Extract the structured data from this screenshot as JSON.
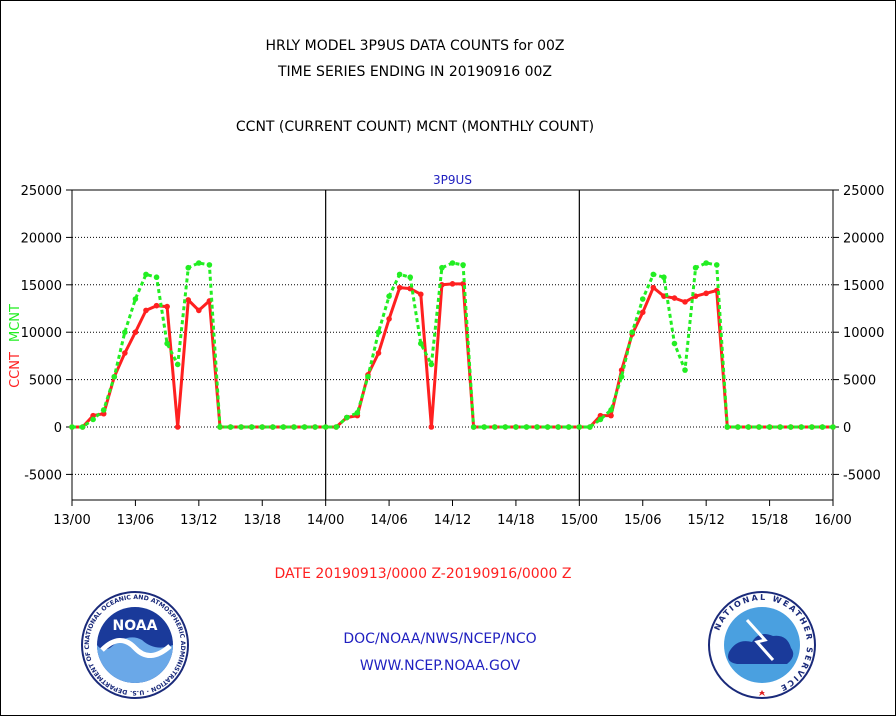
{
  "title_lines": [
    "HRLY MODEL 3P9US DATA COUNTS for 00Z",
    "TIME SERIES ENDING IN 20190916 00Z",
    "CCNT (CURRENT COUNT) MCNT (MONTHLY COUNT)"
  ],
  "date_range_label": "DATE 20190913/0000 Z-20190916/0000 Z",
  "footer_lines": [
    "DOC/NOAA/NWS/NCEP/NCO",
    "WWW.NCEP.NOAA.GOV"
  ],
  "logos": {
    "left": {
      "center_text": "NOAA",
      "ring_text": "NATIONAL OCEANIC AND ATMOSPHERIC ADMINISTRATION · U.S. DEPARTMENT OF COMMERCE"
    },
    "right": {
      "ring_text": "NATIONAL WEATHER SERVICE"
    }
  },
  "colors": {
    "ccnt": "#ff2020",
    "mcnt": "#22ee22",
    "footer": "#2020c0",
    "chart_title": "#2020c0"
  },
  "chart_data": {
    "type": "line",
    "title": "3P9US",
    "ylabel_left": [
      "CCNT",
      "MCNT"
    ],
    "ylim": [
      -7700,
      25000
    ],
    "xlim": [
      0,
      72
    ],
    "yticks_left": [
      "25000",
      "20000",
      "15000",
      "10000",
      "5000",
      "0",
      "-5000"
    ],
    "yticks_right": [
      "25000",
      "20000",
      "15000",
      "10000",
      "5000",
      "0",
      "-5000"
    ],
    "ytick_values": [
      25000,
      20000,
      15000,
      10000,
      5000,
      0,
      -5000
    ],
    "xticks": [
      "13/00",
      "13/06",
      "13/12",
      "13/18",
      "14/00",
      "14/06",
      "14/12",
      "14/18",
      "15/00",
      "15/06",
      "15/12",
      "15/18",
      "16/00"
    ],
    "day_dividers_hours": [
      24,
      48
    ],
    "grid": true,
    "series": [
      {
        "name": "CCNT",
        "color": "#ff2020",
        "x": [
          0,
          1,
          2,
          3,
          4,
          5,
          6,
          7,
          8,
          9,
          10,
          11,
          12,
          13,
          14,
          15,
          16,
          17,
          18,
          19,
          20,
          21,
          22,
          23,
          24,
          25,
          26,
          27,
          28,
          29,
          30,
          31,
          32,
          33,
          34,
          35,
          36,
          37,
          38,
          39,
          40,
          41,
          42,
          43,
          44,
          45,
          46,
          47,
          48,
          49,
          50,
          51,
          52,
          53,
          54,
          55,
          56,
          57,
          58,
          59,
          60,
          61,
          62,
          63,
          64,
          65,
          66,
          67,
          68,
          69,
          70,
          71,
          72
        ],
        "y": [
          0,
          0,
          1200,
          1400,
          5300,
          7800,
          10000,
          12300,
          12800,
          12700,
          0,
          13400,
          12300,
          13300,
          0,
          0,
          0,
          0,
          0,
          0,
          0,
          0,
          0,
          0,
          0,
          0,
          1000,
          1200,
          5500,
          7800,
          11400,
          14700,
          14600,
          14000,
          0,
          15000,
          15100,
          15100,
          0,
          0,
          0,
          0,
          0,
          0,
          0,
          0,
          0,
          0,
          0,
          0,
          1200,
          1200,
          6000,
          9800,
          12100,
          14700,
          13800,
          13600,
          13200,
          13800,
          14100,
          14400,
          0,
          0,
          0,
          0,
          0,
          0,
          0,
          0,
          0,
          0,
          0
        ]
      },
      {
        "name": "MCNT",
        "color": "#22ee22",
        "x": [
          0,
          1,
          2,
          3,
          4,
          5,
          6,
          7,
          8,
          9,
          10,
          11,
          12,
          13,
          14,
          15,
          16,
          17,
          18,
          19,
          20,
          21,
          22,
          23,
          24,
          25,
          26,
          27,
          28,
          29,
          30,
          31,
          32,
          33,
          34,
          35,
          36,
          37,
          38,
          39,
          40,
          41,
          42,
          43,
          44,
          45,
          46,
          47,
          48,
          49,
          50,
          51,
          52,
          53,
          54,
          55,
          56,
          57,
          58,
          59,
          60,
          61,
          62,
          63,
          64,
          65,
          66,
          67,
          68,
          69,
          70,
          71,
          72
        ],
        "y": [
          0,
          0,
          800,
          1800,
          5300,
          10000,
          13500,
          16100,
          15800,
          8800,
          6600,
          16800,
          17300,
          17100,
          0,
          0,
          0,
          0,
          0,
          0,
          0,
          0,
          0,
          0,
          0,
          0,
          1000,
          1500,
          5300,
          10000,
          13800,
          16100,
          15800,
          8800,
          6600,
          16800,
          17300,
          17100,
          0,
          0,
          0,
          0,
          0,
          0,
          0,
          0,
          0,
          0,
          0,
          0,
          800,
          1800,
          5300,
          10000,
          13500,
          16100,
          15800,
          8800,
          6000,
          16800,
          17300,
          17100,
          0,
          0,
          0,
          0,
          0,
          0,
          0,
          0,
          0,
          0,
          0
        ]
      }
    ]
  }
}
